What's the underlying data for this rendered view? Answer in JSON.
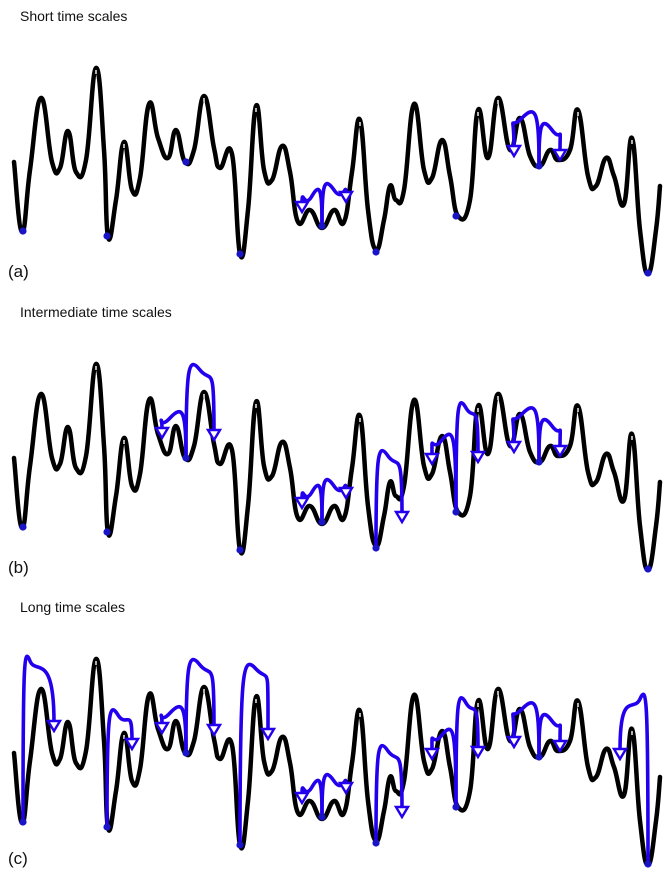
{
  "colors": {
    "landscape": "#000000",
    "state": "#1a14c8",
    "arrow": "#2200ee"
  },
  "icons": [
    "energy-landscape-curve",
    "state-dot-marker",
    "hop-arrow-icon"
  ],
  "panels": [
    {
      "title": "Short time scales",
      "label": "(a)"
    },
    {
      "title": "Intermediate time scales",
      "label": "(b)"
    },
    {
      "title": "Long time scales",
      "label": "(c)"
    }
  ]
}
